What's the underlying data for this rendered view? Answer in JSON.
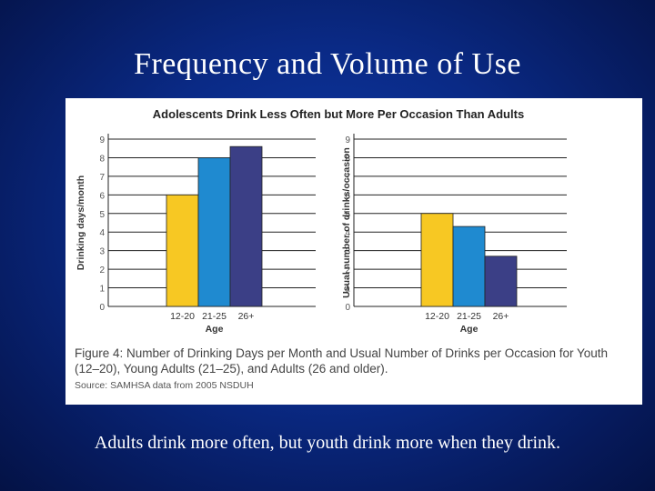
{
  "slide": {
    "title": "Frequency and Volume of Use",
    "footer": "Adults drink more often, but youth drink more when they drink."
  },
  "figure": {
    "caption": "Figure 4: Number of Drinking Days per Month and Usual Number of Drinks per Occasion for Youth (12–20), Young Adults (21–25), and Adults (26 and older).",
    "source": "Source: SAMHSA data from 2005 NSDUH"
  },
  "colors": {
    "youth": "#f7c823",
    "young_adults": "#1f8ad0",
    "adults": "#3b3f86",
    "axis": "#222222",
    "grid": "#222222"
  },
  "chart_data": [
    {
      "type": "bar",
      "title": "Adolescents Drink Less Often but More Per Occasion Than Adults",
      "xlabel": "Age",
      "ylabel": "Drinking days/month",
      "categories": [
        "12-20",
        "21-25",
        "26+"
      ],
      "values": [
        6.0,
        8.0,
        8.6
      ],
      "ylim": [
        0,
        9
      ],
      "yticks": [
        "0",
        "1",
        "2",
        "3",
        "4",
        "5",
        "6",
        "7",
        "8",
        "9"
      ],
      "grid": true
    },
    {
      "type": "bar",
      "title": "Adolescents Drink Less Often but More Per Occasion Than Adults",
      "xlabel": "Age",
      "ylabel": "Usual number of drinks/occasion",
      "categories": [
        "12-20",
        "21-25",
        "26+"
      ],
      "values": [
        5.0,
        4.3,
        2.7
      ],
      "ylim": [
        0,
        9
      ],
      "yticks": [
        "0",
        "1",
        "2",
        "3",
        "4",
        "5",
        "6",
        "7",
        "8",
        "9"
      ],
      "grid": true
    }
  ]
}
